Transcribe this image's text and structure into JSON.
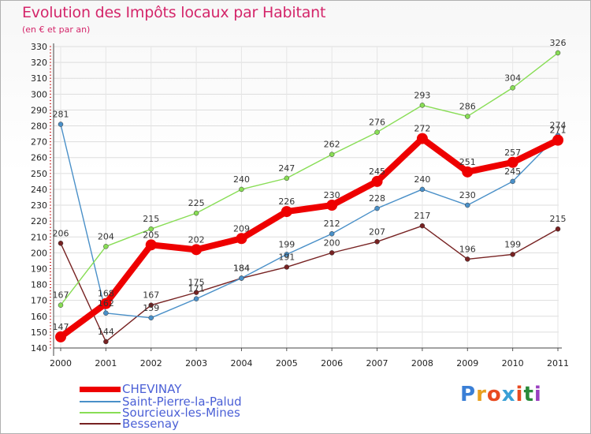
{
  "title": "Evolution des Impôts locaux par Habitant",
  "subtitle": "(en € et par an)",
  "logo": {
    "text": "Proxiti",
    "colors": [
      "#3a7fd6",
      "#e8a020",
      "#e84a20",
      "#3aa0d6",
      "#e84a20",
      "#2a8a3a",
      "#9a40c0"
    ]
  },
  "chart_data": {
    "type": "line",
    "title": "Evolution des Impôts locaux par Habitant",
    "subtitle": "(en € et par an)",
    "x": [
      "2000",
      "2001",
      "2002",
      "2003",
      "2004",
      "2005",
      "2006",
      "2007",
      "2008",
      "2009",
      "2010",
      "2011"
    ],
    "ylim": [
      140,
      330
    ],
    "yticks": [
      140,
      150,
      160,
      170,
      180,
      190,
      200,
      210,
      220,
      230,
      240,
      250,
      260,
      270,
      280,
      290,
      300,
      310,
      320,
      330
    ],
    "grid": true,
    "legend": "bottom-left",
    "series": [
      {
        "name": "CHEVINAY",
        "color": "#ee0000",
        "values": [
          147,
          168,
          205,
          202,
          209,
          226,
          230,
          245,
          272,
          251,
          257,
          271
        ]
      },
      {
        "name": "Saint-Pierre-la-Palud",
        "color": "#4a90c8",
        "values": [
          281,
          162,
          159,
          171,
          184,
          199,
          212,
          228,
          240,
          230,
          245,
          274
        ]
      },
      {
        "name": "Sourcieux-les-Mines",
        "color": "#88dd55",
        "values": [
          167,
          204,
          215,
          225,
          240,
          247,
          262,
          276,
          293,
          286,
          304,
          326
        ]
      },
      {
        "name": "Bessenay",
        "color": "#772222",
        "values": [
          206,
          144,
          167,
          175,
          184,
          191,
          200,
          207,
          217,
          196,
          199,
          215
        ]
      }
    ]
  }
}
